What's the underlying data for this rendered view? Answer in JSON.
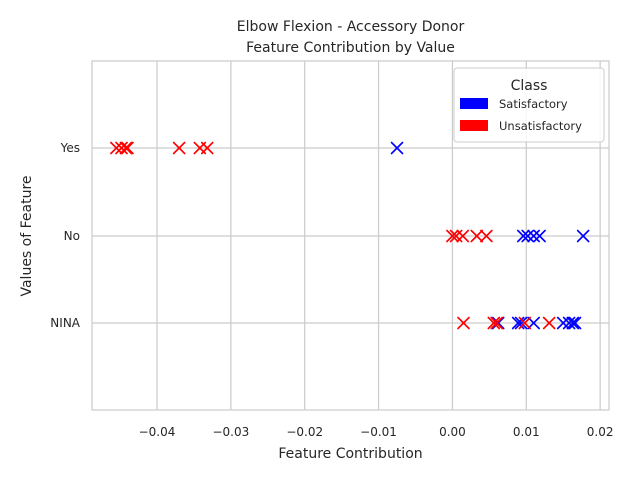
{
  "chart_data": {
    "type": "scatter",
    "title_lines": [
      "Elbow Flexion - Accessory Donor",
      "Feature Contribution by Value"
    ],
    "xlabel": "Feature Contribution",
    "ylabel": "Values of Feature",
    "xlim": [
      -0.0488,
      0.0212
    ],
    "xticks": [
      -0.04,
      -0.03,
      -0.02,
      -0.01,
      0.0,
      0.01,
      0.02
    ],
    "xtick_labels": [
      "−0.04",
      "−0.03",
      "−0.02",
      "−0.01",
      "0.00",
      "0.01",
      "0.02"
    ],
    "categories": [
      "Yes",
      "No",
      "NINA"
    ],
    "grid": true,
    "marker": "x",
    "legend": {
      "title": "Class",
      "position": "top-right",
      "entries": [
        {
          "label": "Satisfactory",
          "color": "#0000ff"
        },
        {
          "label": "Unsatisfactory",
          "color": "#ff0000"
        }
      ]
    },
    "series": [
      {
        "name": "Satisfactory",
        "color": "#0000ff",
        "points": [
          {
            "x": -0.0075,
            "y": "Yes"
          },
          {
            "x": 0.0096,
            "y": "No"
          },
          {
            "x": 0.0102,
            "y": "No"
          },
          {
            "x": 0.011,
            "y": "No"
          },
          {
            "x": 0.0118,
            "y": "No"
          },
          {
            "x": 0.0177,
            "y": "No"
          },
          {
            "x": 0.0062,
            "y": "NINA"
          },
          {
            "x": 0.0089,
            "y": "NINA"
          },
          {
            "x": 0.0093,
            "y": "NINA"
          },
          {
            "x": 0.011,
            "y": "NINA"
          },
          {
            "x": 0.015,
            "y": "NINA"
          },
          {
            "x": 0.0158,
            "y": "NINA"
          },
          {
            "x": 0.0163,
            "y": "NINA"
          },
          {
            "x": 0.0166,
            "y": "NINA"
          }
        ]
      },
      {
        "name": "Unsatisfactory",
        "color": "#ff0000",
        "points": [
          {
            "x": -0.0455,
            "y": "Yes"
          },
          {
            "x": -0.0448,
            "y": "Yes"
          },
          {
            "x": -0.0442,
            "y": "Yes"
          },
          {
            "x": -0.044,
            "y": "Yes"
          },
          {
            "x": -0.037,
            "y": "Yes"
          },
          {
            "x": -0.0342,
            "y": "Yes"
          },
          {
            "x": -0.0332,
            "y": "Yes"
          },
          {
            "x": 0.0,
            "y": "No"
          },
          {
            "x": 0.0005,
            "y": "No"
          },
          {
            "x": 0.0014,
            "y": "No"
          },
          {
            "x": 0.0033,
            "y": "No"
          },
          {
            "x": 0.0046,
            "y": "No"
          },
          {
            "x": 0.0015,
            "y": "NINA"
          },
          {
            "x": 0.0056,
            "y": "NINA"
          },
          {
            "x": 0.006,
            "y": "NINA"
          },
          {
            "x": 0.0098,
            "y": "NINA"
          },
          {
            "x": 0.0131,
            "y": "NINA"
          }
        ]
      }
    ]
  }
}
